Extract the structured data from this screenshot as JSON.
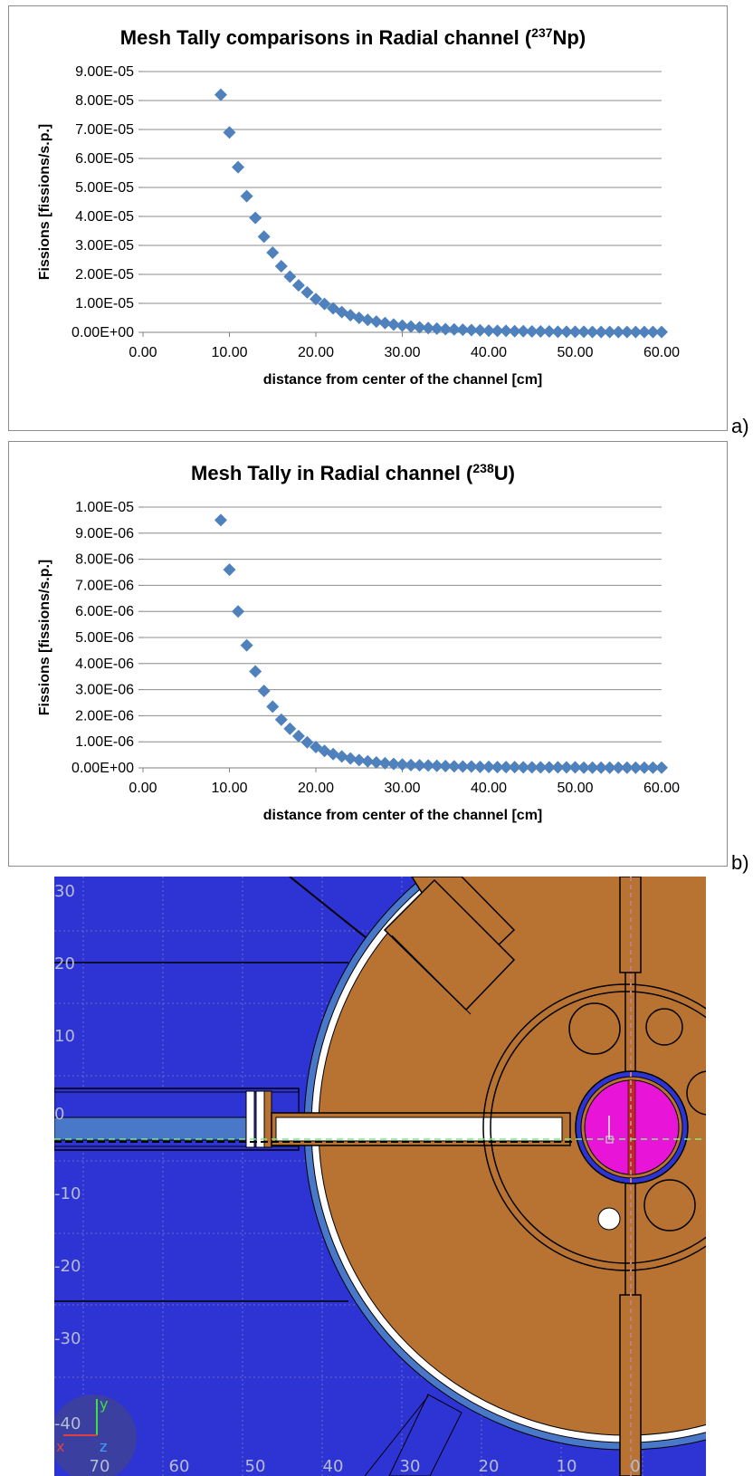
{
  "chart_data": [
    {
      "type": "scatter",
      "title_main": "Mesh Tally comparisons in Radial channel (",
      "title_sup": "237",
      "title_end": "Np)",
      "xlabel": "distance from center of the channel [cm]",
      "ylabel": "Fissions [fissions/s.p.]",
      "xlim": [
        0,
        60
      ],
      "ylim": [
        0,
        9e-05
      ],
      "x_ticks": [
        "0.00",
        "10.00",
        "20.00",
        "30.00",
        "40.00",
        "50.00",
        "60.00"
      ],
      "y_ticks": [
        "0.00E+00",
        "1.00E-05",
        "2.00E-05",
        "3.00E-05",
        "4.00E-05",
        "5.00E-05",
        "6.00E-05",
        "7.00E-05",
        "8.00E-05",
        "9.00E-05"
      ],
      "grid": "horizontal",
      "marker": "diamond",
      "color": "#4f81bd",
      "x": [
        9,
        10,
        11,
        12,
        13,
        14,
        15,
        16,
        17,
        18,
        19,
        20,
        21,
        22,
        23,
        24,
        25,
        26,
        27,
        28,
        29,
        30,
        31,
        32,
        33,
        34,
        35,
        36,
        37,
        38,
        39,
        40,
        41,
        42,
        43,
        44,
        45,
        46,
        47,
        48,
        49,
        50,
        51,
        52,
        53,
        54,
        55,
        56,
        57,
        58,
        59,
        60
      ],
      "y": [
        8.2e-05,
        6.9e-05,
        5.7e-05,
        4.7e-05,
        3.95e-05,
        3.3e-05,
        2.75e-05,
        2.28e-05,
        1.92e-05,
        1.62e-05,
        1.38e-05,
        1.15e-05,
        9.8e-06,
        8.3e-06,
        7e-06,
        5.9e-06,
        5e-06,
        4.3e-06,
        3.7e-06,
        3.2e-06,
        2.7e-06,
        2.3e-06,
        2e-06,
        1.7e-06,
        1.5e-06,
        1.3e-06,
        1.1e-06,
        1e-06,
        9e-07,
        8e-07,
        7e-07,
        6e-07,
        5e-07,
        5e-07,
        4e-07,
        4e-07,
        3e-07,
        3e-07,
        3e-07,
        2e-07,
        2e-07,
        2e-07,
        2e-07,
        1e-07,
        1e-07,
        1e-07,
        1e-07,
        1e-07,
        1e-07,
        1e-07,
        1e-07,
        1e-07
      ]
    },
    {
      "type": "scatter",
      "title_main": "Mesh Tally  in Radial channel (",
      "title_sup": "238",
      "title_end": "U)",
      "xlabel": "distance from center of the channel [cm]",
      "ylabel": "Fissions [fissions/s.p.]",
      "xlim": [
        0,
        60
      ],
      "ylim": [
        0,
        1e-05
      ],
      "x_ticks": [
        "0.00",
        "10.00",
        "20.00",
        "30.00",
        "40.00",
        "50.00",
        "60.00"
      ],
      "y_ticks": [
        "0.00E+00",
        "1.00E-06",
        "2.00E-06",
        "3.00E-06",
        "4.00E-06",
        "5.00E-06",
        "6.00E-06",
        "7.00E-06",
        "8.00E-06",
        "9.00E-06",
        "1.00E-05"
      ],
      "grid": "horizontal",
      "marker": "diamond",
      "color": "#4f81bd",
      "x": [
        9,
        10,
        11,
        12,
        13,
        14,
        15,
        16,
        17,
        18,
        19,
        20,
        21,
        22,
        23,
        24,
        25,
        26,
        27,
        28,
        29,
        30,
        31,
        32,
        33,
        34,
        35,
        36,
        37,
        38,
        39,
        40,
        41,
        42,
        43,
        44,
        45,
        46,
        47,
        48,
        49,
        50,
        51,
        52,
        53,
        54,
        55,
        56,
        57,
        58,
        59,
        60
      ],
      "y": [
        9.5e-06,
        7.6e-06,
        6e-06,
        4.7e-06,
        3.7e-06,
        2.95e-06,
        2.35e-06,
        1.85e-06,
        1.5e-06,
        1.22e-06,
        9.8e-07,
        8e-07,
        6.5e-07,
        5.3e-07,
        4.4e-07,
        3.6e-07,
        3e-07,
        2.5e-07,
        2.1e-07,
        1.8e-07,
        1.5e-07,
        1.3e-07,
        1.1e-07,
        1e-07,
        9e-08,
        8e-08,
        7e-08,
        6e-08,
        5e-08,
        5e-08,
        4e-08,
        4e-08,
        3e-08,
        3e-08,
        3e-08,
        2e-08,
        2e-08,
        2e-08,
        2e-08,
        2e-08,
        2e-08,
        2e-08,
        1e-08,
        1e-08,
        1e-08,
        1e-08,
        1e-08,
        1e-08,
        1e-08,
        1e-08,
        1e-08,
        1e-08
      ]
    }
  ],
  "panel_labels": [
    "a)",
    "b)"
  ],
  "geometry_view": {
    "y_tick_labels": [
      "30",
      "20",
      "10",
      "0",
      "-10",
      "-20",
      "-30",
      "-40"
    ],
    "x_tick_labels": [
      "70",
      "60",
      "50",
      "40",
      "30",
      "20",
      "10",
      "0"
    ],
    "axis_y_label": "y",
    "axis_z_label": "z",
    "axis_x_label": "x",
    "colors": {
      "background": "#2e33d4",
      "grid": "#6a6ec4",
      "vessel": "#b87333",
      "target": "#e815d8",
      "light_blue": "#4a78c8"
    }
  }
}
